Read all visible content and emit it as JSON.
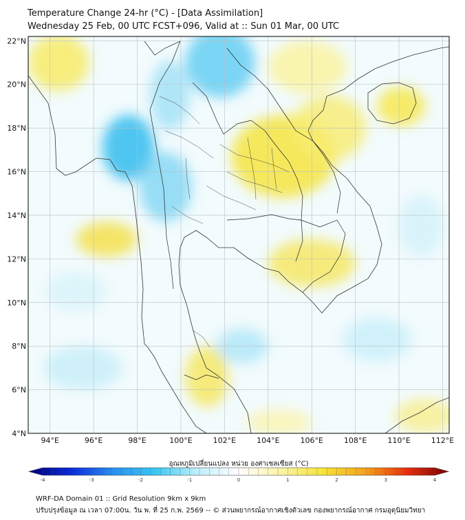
{
  "title": {
    "line1": "Temperature Change 24-hr (°C) - [Data Assimilation]",
    "line2": "Wednesday 25 Feb, 00 UTC FCST+096, Valid at :: Sun 01 Mar, 00 UTC"
  },
  "map": {
    "lon_range": [
      93,
      112.3
    ],
    "lat_range": [
      4,
      22.2
    ],
    "lat_ticks": [
      {
        "value": 22,
        "label": "22°N"
      },
      {
        "value": 20,
        "label": "20°N"
      },
      {
        "value": 18,
        "label": "18°N"
      },
      {
        "value": 16,
        "label": "16°N"
      },
      {
        "value": 14,
        "label": "14°N"
      },
      {
        "value": 12,
        "label": "12°N"
      },
      {
        "value": 10,
        "label": "10°N"
      },
      {
        "value": 8,
        "label": "8°N"
      },
      {
        "value": 6,
        "label": "6°N"
      },
      {
        "value": 4,
        "label": "4°N"
      }
    ],
    "lon_ticks": [
      {
        "value": 94,
        "label": "94°E"
      },
      {
        "value": 96,
        "label": "96°E"
      },
      {
        "value": 98,
        "label": "98°E"
      },
      {
        "value": 100,
        "label": "100°E"
      },
      {
        "value": 102,
        "label": "102°E"
      },
      {
        "value": 104,
        "label": "104°E"
      },
      {
        "value": 106,
        "label": "106°E"
      },
      {
        "value": 108,
        "label": "108°E"
      },
      {
        "value": 110,
        "label": "110°E"
      },
      {
        "value": 112,
        "label": "112°E"
      }
    ],
    "blobs": [
      {
        "lon": 101.8,
        "lat": 21.0,
        "rx": 1.6,
        "ry": 1.6,
        "color": "#6fd0f4",
        "opacity": 0.9,
        "region": "north-laos-cool"
      },
      {
        "lon": 99.5,
        "lat": 19.5,
        "rx": 0.9,
        "ry": 1.6,
        "color": "#9fe0f6",
        "opacity": 0.8,
        "region": "north-thailand-cool"
      },
      {
        "lon": 97.6,
        "lat": 17.1,
        "rx": 1.2,
        "ry": 1.5,
        "color": "#3fc0f0",
        "opacity": 0.9,
        "region": "myanmar-border-cold"
      },
      {
        "lon": 99.3,
        "lat": 15.3,
        "rx": 1.2,
        "ry": 1.6,
        "color": "#7fd6f4",
        "opacity": 0.8,
        "region": "west-thailand-cool"
      },
      {
        "lon": 104.7,
        "lat": 16.7,
        "rx": 2.4,
        "ry": 1.9,
        "color": "#f5e64a",
        "opacity": 0.9,
        "region": "isan-warm"
      },
      {
        "lon": 106.8,
        "lat": 18.0,
        "rx": 1.7,
        "ry": 1.5,
        "color": "#f7ec70",
        "opacity": 0.8,
        "region": "central-laos-warm"
      },
      {
        "lon": 110.1,
        "lat": 19.0,
        "rx": 1.1,
        "ry": 0.9,
        "color": "#f6e95a",
        "opacity": 0.9,
        "region": "hainan-warm"
      },
      {
        "lon": 105.8,
        "lat": 20.8,
        "rx": 1.8,
        "ry": 1.2,
        "color": "#fbf29a",
        "opacity": 0.8,
        "region": "north-vietnam-warm"
      },
      {
        "lon": 94.4,
        "lat": 21.0,
        "rx": 1.4,
        "ry": 1.3,
        "color": "#f7ec70",
        "opacity": 0.9,
        "region": "bangladesh-warm"
      },
      {
        "lon": 96.6,
        "lat": 12.9,
        "rx": 1.4,
        "ry": 0.8,
        "color": "#f4e257",
        "opacity": 0.9,
        "region": "andaman-warm"
      },
      {
        "lon": 106.0,
        "lat": 11.8,
        "rx": 2.0,
        "ry": 1.1,
        "color": "#f6e864",
        "opacity": 0.85,
        "region": "cambodia-warm"
      },
      {
        "lon": 101.2,
        "lat": 6.6,
        "rx": 1.0,
        "ry": 1.4,
        "color": "#f6e864",
        "opacity": 0.85,
        "region": "south-thailand-warm"
      },
      {
        "lon": 102.8,
        "lat": 8.0,
        "rx": 1.2,
        "ry": 0.8,
        "color": "#aee6f7",
        "opacity": 0.8,
        "region": "gulf-cool"
      },
      {
        "lon": 95.5,
        "lat": 7.0,
        "rx": 1.8,
        "ry": 1.0,
        "color": "#c5eef9",
        "opacity": 0.8,
        "region": "indian-ocean-cool"
      },
      {
        "lon": 109.0,
        "lat": 8.3,
        "rx": 1.6,
        "ry": 1.0,
        "color": "#c5eef9",
        "opacity": 0.75,
        "region": "south-china-sea-cool"
      },
      {
        "lon": 111.0,
        "lat": 13.5,
        "rx": 1.0,
        "ry": 1.4,
        "color": "#cdeff9",
        "opacity": 0.7,
        "region": "east-sea-cool"
      },
      {
        "lon": 95.2,
        "lat": 10.5,
        "rx": 1.4,
        "ry": 0.9,
        "color": "#d4f2fa",
        "opacity": 0.7,
        "region": "andaman-sea-cool"
      },
      {
        "lon": 111.2,
        "lat": 4.8,
        "rx": 1.4,
        "ry": 0.8,
        "color": "#f8ee86",
        "opacity": 0.75,
        "region": "borneo-warm"
      },
      {
        "lon": 104.5,
        "lat": 4.5,
        "rx": 1.5,
        "ry": 0.6,
        "color": "#fbf3a8",
        "opacity": 0.75,
        "region": "malaysia-warm"
      }
    ]
  },
  "colorbar": {
    "label": "อุณหภูมิเปลี่ยนแปลง หน่วย องศาเซลเซียส (°C)",
    "min": -4,
    "max": 4,
    "ticks": [
      {
        "value": -4,
        "label": "-4"
      },
      {
        "value": -3,
        "label": "-3"
      },
      {
        "value": -2,
        "label": "-2"
      },
      {
        "value": -1,
        "label": "-1"
      },
      {
        "value": 0,
        "label": "0"
      },
      {
        "value": 1,
        "label": "1"
      },
      {
        "value": 2,
        "label": "2"
      },
      {
        "value": 3,
        "label": "3"
      },
      {
        "value": 4,
        "label": "4"
      }
    ],
    "stops": [
      "#00007a",
      "#0a2ad9",
      "#2a8ff0",
      "#37c7f2",
      "#bfeefb",
      "#ffffff",
      "#fbf4a6",
      "#f6e33a",
      "#f5a41a",
      "#e8300e",
      "#7a0000"
    ]
  },
  "footer": {
    "line1": "WRF-DA Domain 01 :: Grid Resolution 9km x 9km",
    "line2": "ปรับปรุงข้อมูล ณ เวลา 07:00น. วัน พ. ที่ 25 ก.พ. 2569 -- © ส่วนพยากรณ์อากาศเชิงตัวเลข กองพยากรณ์อากาศ กรมอุตุนิยมวิทยา"
  }
}
